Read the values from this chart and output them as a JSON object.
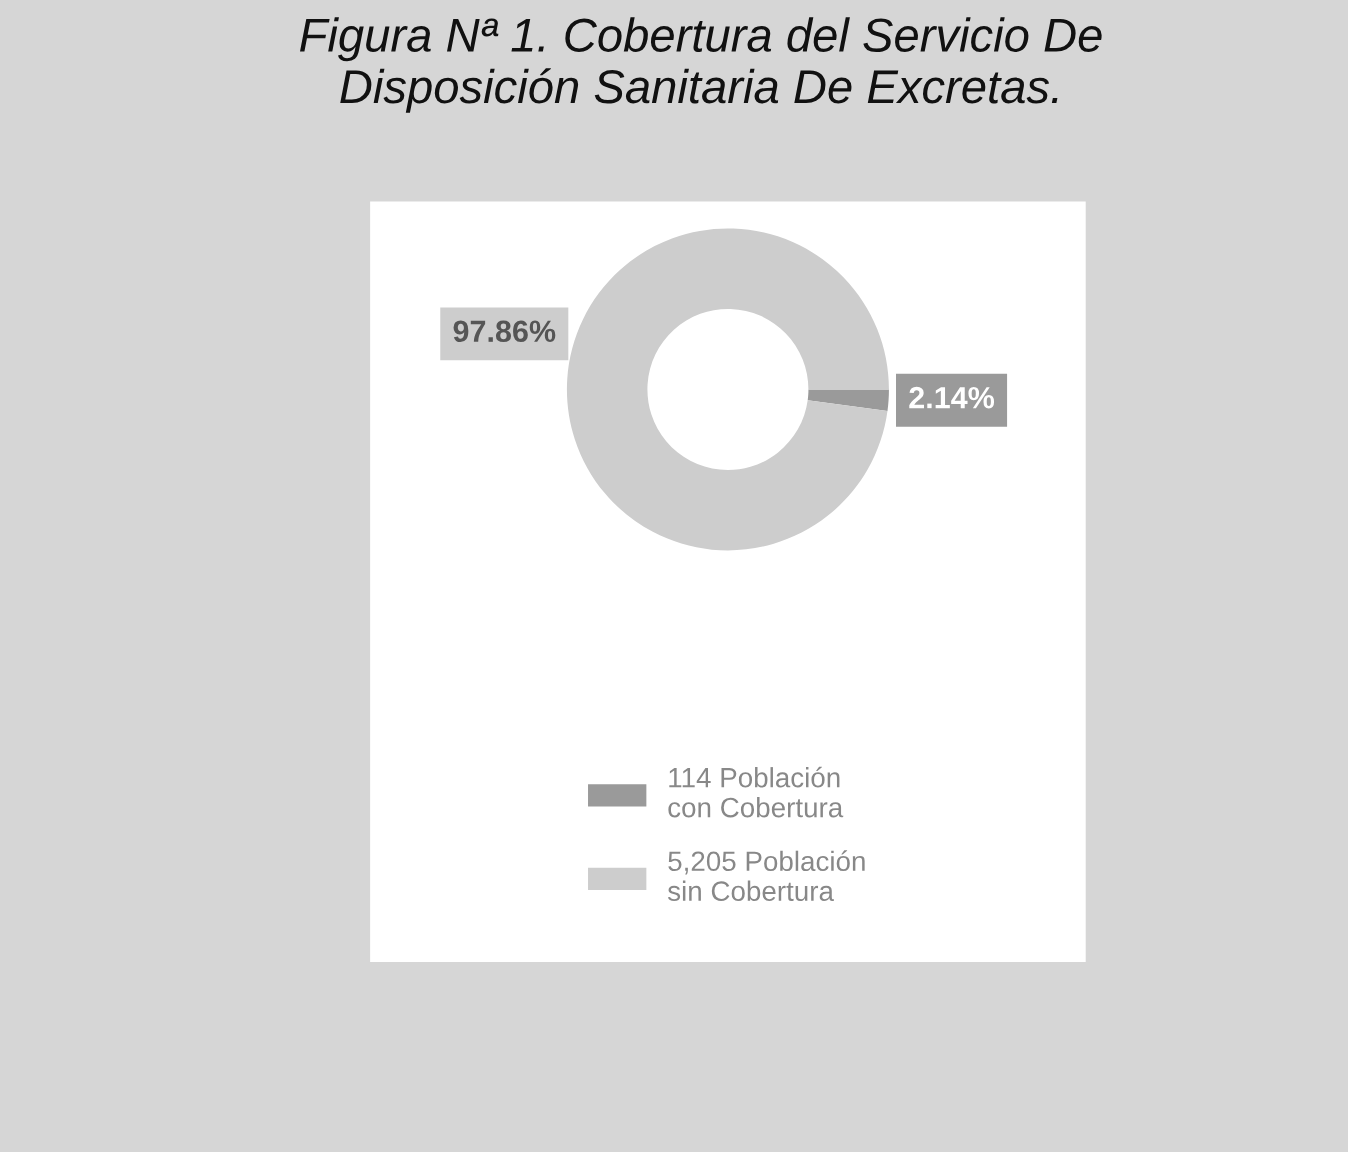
{
  "chart_data": {
    "type": "donut",
    "title": "Figura Nª 1. Cobertura del Servicio De\nDisposición Sanitaria De Excretas.",
    "categories": [
      "114 Población\ncon Cobertura",
      "5,205 Población\nsin Cobertura"
    ],
    "values": [
      2.14,
      97.86
    ],
    "colors": [
      "#9a9a9a",
      "#cdcdcd"
    ],
    "value_labels": [
      "2.14%",
      "97.86%"
    ],
    "legend": "bottom"
  }
}
